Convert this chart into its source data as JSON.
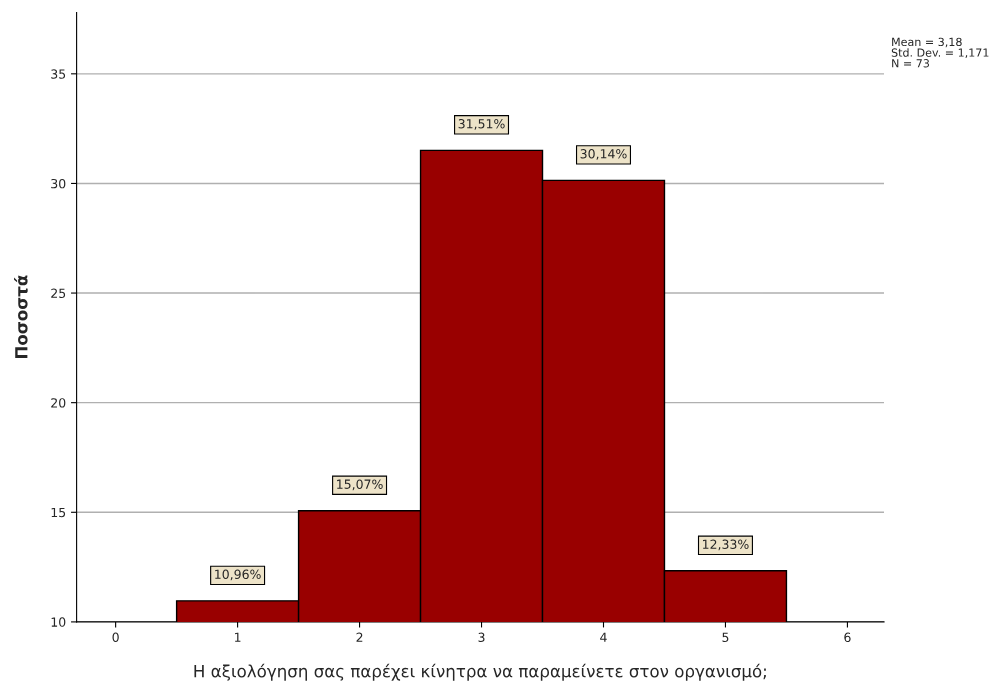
{
  "chart_data": {
    "type": "histogram",
    "xlabel": "Η αξιολόγηση σας παρέχει κίνητρα να παραμείνετε στον οργανισμό;",
    "ylabel": "Ποσοστά",
    "bins": [
      0.5,
      1.5,
      2.5,
      3.5,
      4.5,
      5.5
    ],
    "values": [
      10.96,
      15.07,
      31.51,
      30.14,
      12.33
    ],
    "value_labels": [
      "10,96%",
      "15,07%",
      "31,51%",
      "30,14%",
      "12,33%"
    ],
    "color": "#990000",
    "xlim": [
      -0.32,
      6.3
    ],
    "xticks": [
      0,
      1,
      2,
      3,
      4,
      5,
      6
    ],
    "ylim": [
      10,
      37.8
    ],
    "yticks": [
      10,
      15,
      20,
      25,
      30,
      35
    ],
    "grid": "y",
    "annotations": [
      "Mean = 3,18",
      "Std. Dev. = 1,171",
      "N = 73"
    ]
  }
}
